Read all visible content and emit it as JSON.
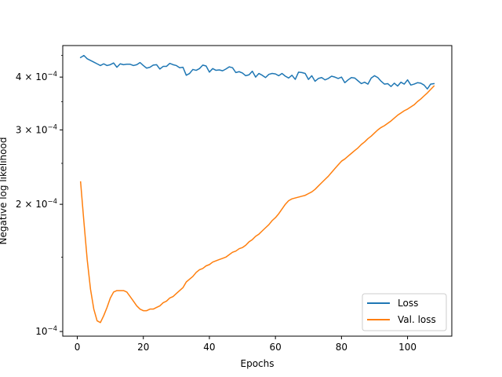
{
  "chart_data": {
    "type": "line",
    "title": "",
    "xlabel": "Epochs",
    "ylabel": "Negative log likelihood",
    "yscale": "log",
    "xlim": [
      -4.4,
      113.4
    ],
    "ylim": [
      9.75e-05,
      0.000475
    ],
    "grid": false,
    "legend_position": "lower-right",
    "xticks": [
      {
        "value": 0,
        "label": "0"
      },
      {
        "value": 20,
        "label": "20"
      },
      {
        "value": 40,
        "label": "40"
      },
      {
        "value": 60,
        "label": "60"
      },
      {
        "value": 80,
        "label": "80"
      },
      {
        "value": 100,
        "label": "100"
      }
    ],
    "yticks": [
      {
        "value": 0.0001,
        "mantissa": "10",
        "exponent": "−4"
      },
      {
        "value": 0.0002,
        "mantissa": "2 × 10",
        "exponent": "−4"
      },
      {
        "value": 0.0003,
        "mantissa": "3 × 10",
        "exponent": "−4"
      },
      {
        "value": 0.0004,
        "mantissa": "4 × 10",
        "exponent": "−4"
      }
    ],
    "series": [
      {
        "name": "Loss",
        "color": "#1f77b4",
        "x": [
          1,
          2,
          3,
          4,
          5,
          6,
          7,
          8,
          9,
          10,
          11,
          12,
          13,
          14,
          15,
          16,
          17,
          18,
          19,
          20,
          21,
          22,
          23,
          24,
          25,
          26,
          27,
          28,
          29,
          30,
          31,
          32,
          33,
          34,
          35,
          36,
          37,
          38,
          39,
          40,
          41,
          42,
          43,
          44,
          45,
          46,
          47,
          48,
          49,
          50,
          51,
          52,
          53,
          54,
          55,
          56,
          57,
          58,
          59,
          60,
          61,
          62,
          63,
          64,
          65,
          66,
          67,
          68,
          69,
          70,
          71,
          72,
          73,
          74,
          75,
          76,
          77,
          78,
          79,
          80,
          81,
          82,
          83,
          84,
          85,
          86,
          87,
          88,
          89,
          90,
          91,
          92,
          93,
          94,
          95,
          96,
          97,
          98,
          99,
          100,
          101,
          102,
          103,
          104,
          105,
          106,
          107,
          108
        ],
        "values": [
          0.000445,
          0.00045,
          0.000442,
          0.000438,
          0.000434,
          0.00043,
          0.000426,
          0.00043,
          0.000426,
          0.000428,
          0.000432,
          0.000422,
          0.00043,
          0.000428,
          0.000429,
          0.000429,
          0.000426,
          0.000428,
          0.000433,
          0.000426,
          0.00042,
          0.000422,
          0.000427,
          0.000428,
          0.000418,
          0.000424,
          0.000424,
          0.000431,
          0.000428,
          0.000426,
          0.000421,
          0.000422,
          0.000404,
          0.000408,
          0.000417,
          0.000415,
          0.000419,
          0.000427,
          0.000425,
          0.000411,
          0.000419,
          0.000415,
          0.000416,
          0.000414,
          0.000418,
          0.000423,
          0.000421,
          0.00041,
          0.000412,
          0.000409,
          0.000403,
          0.000405,
          0.000413,
          0.0004,
          0.000408,
          0.000404,
          0.000399,
          0.000406,
          0.000408,
          0.000407,
          0.000403,
          0.000408,
          0.000402,
          0.000398,
          0.000404,
          0.000395,
          0.000411,
          0.00041,
          0.000408,
          0.000395,
          0.000403,
          0.000391,
          0.000397,
          0.000399,
          0.000394,
          0.000397,
          0.000402,
          0.0004,
          0.000397,
          0.0004,
          0.000388,
          0.000394,
          0.000399,
          0.000398,
          0.000392,
          0.000386,
          0.000389,
          0.000385,
          0.000398,
          0.000403,
          0.000399,
          0.000391,
          0.000385,
          0.000386,
          0.00038,
          0.000387,
          0.000381,
          0.000389,
          0.000385,
          0.000394,
          0.000383,
          0.000385,
          0.000388,
          0.000387,
          0.000383,
          0.000375,
          0.000385,
          0.000386
        ]
      },
      {
        "name": "Val. loss",
        "color": "#ff7f0e",
        "x": [
          1,
          2,
          3,
          4,
          5,
          6,
          7,
          8,
          9,
          10,
          11,
          12,
          13,
          14,
          15,
          16,
          17,
          18,
          19,
          20,
          21,
          22,
          23,
          24,
          25,
          26,
          27,
          28,
          29,
          30,
          31,
          32,
          33,
          34,
          35,
          36,
          37,
          38,
          39,
          40,
          41,
          42,
          43,
          44,
          45,
          46,
          47,
          48,
          49,
          50,
          51,
          52,
          53,
          54,
          55,
          56,
          57,
          58,
          59,
          60,
          61,
          62,
          63,
          64,
          65,
          66,
          67,
          68,
          69,
          70,
          71,
          72,
          73,
          74,
          75,
          76,
          77,
          78,
          79,
          80,
          81,
          82,
          83,
          84,
          85,
          86,
          87,
          88,
          89,
          90,
          91,
          92,
          93,
          94,
          95,
          96,
          97,
          98,
          99,
          100,
          101,
          102,
          103,
          104,
          105,
          106,
          107,
          108
        ],
        "values": [
          0.000226,
          0.000182,
          0.000148,
          0.000126,
          0.000113,
          0.000106,
          0.000105,
          0.000109,
          0.000114,
          0.00012,
          0.000124,
          0.000125,
          0.000125,
          0.000125,
          0.000124,
          0.000121,
          0.000118,
          0.000115,
          0.000113,
          0.000112,
          0.000112,
          0.000113,
          0.000113,
          0.000114,
          0.000115,
          0.000117,
          0.000118,
          0.00012,
          0.000121,
          0.000123,
          0.000125,
          0.000127,
          0.000131,
          0.000133,
          0.000135,
          0.000138,
          0.00014,
          0.000141,
          0.000143,
          0.000144,
          0.000146,
          0.000147,
          0.000148,
          0.000149,
          0.00015,
          0.000152,
          0.000154,
          0.000155,
          0.000157,
          0.000158,
          0.00016,
          0.000163,
          0.000165,
          0.000168,
          0.00017,
          0.000173,
          0.000176,
          0.000179,
          0.000183,
          0.000186,
          0.00019,
          0.000195,
          0.0002,
          0.000204,
          0.000206,
          0.000207,
          0.000208,
          0.000209,
          0.00021,
          0.000212,
          0.000214,
          0.000217,
          0.000221,
          0.000225,
          0.000229,
          0.000233,
          0.000238,
          0.000243,
          0.000248,
          0.000253,
          0.000256,
          0.00026,
          0.000264,
          0.000268,
          0.000272,
          0.000277,
          0.000281,
          0.000286,
          0.00029,
          0.000295,
          0.0003,
          0.000304,
          0.000307,
          0.000311,
          0.000315,
          0.00032,
          0.000325,
          0.000329,
          0.000333,
          0.000336,
          0.00034,
          0.000344,
          0.00035,
          0.000355,
          0.000361,
          0.000367,
          0.000374,
          0.000381
        ]
      }
    ]
  }
}
